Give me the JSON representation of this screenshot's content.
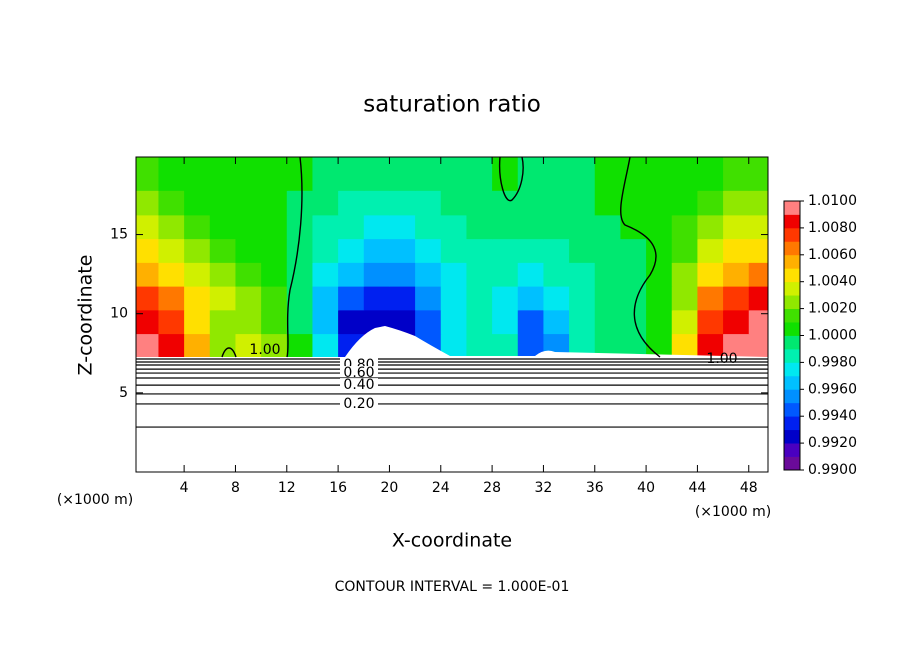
{
  "chart_data": {
    "type": "contour",
    "title": "saturation ratio",
    "x_label": "X-coordinate",
    "y_label": "Z-coordinate",
    "unit_label": "(×1000 m)",
    "footer": "CONTOUR INTERVAL = 1.000E-01",
    "xlim": [
      0.25,
      49.5
    ],
    "ylim": [
      0,
      19.9
    ],
    "xticks": [
      4,
      8,
      12,
      16,
      20,
      24,
      28,
      32,
      36,
      40,
      44,
      48
    ],
    "yticks": [
      5,
      10,
      15
    ],
    "field": {
      "x": [
        1,
        3,
        5,
        7,
        9,
        11,
        13,
        15,
        17,
        19,
        21,
        23,
        25,
        27,
        29,
        31,
        33,
        35,
        37,
        39,
        41,
        43,
        45,
        47,
        49
      ],
      "z": [
        8,
        9.5,
        11,
        12.5,
        14,
        15.5,
        17,
        18.6
      ],
      "values": [
        [
          1.009,
          1.008,
          1.005,
          1.002,
          1.003,
          1.002,
          1.0,
          0.997,
          0.993,
          0.991,
          0.992,
          0.994,
          0.997,
          0.998,
          0.998,
          0.994,
          0.995,
          0.998,
          0.999,
          0.999,
          1.0,
          1.004,
          1.008,
          1.009,
          1.009
        ],
        [
          1.008,
          1.007,
          1.004,
          1.002,
          1.002,
          1.001,
          0.999,
          0.996,
          0.992,
          0.992,
          0.992,
          0.994,
          0.997,
          0.998,
          0.997,
          0.994,
          0.996,
          0.998,
          0.999,
          0.999,
          1.0,
          1.003,
          1.007,
          1.008,
          1.009
        ],
        [
          1.007,
          1.006,
          1.004,
          1.003,
          1.002,
          1.001,
          0.999,
          0.996,
          0.994,
          0.993,
          0.993,
          0.995,
          0.997,
          0.998,
          0.997,
          0.996,
          0.997,
          0.998,
          0.999,
          0.999,
          1.0,
          1.002,
          1.006,
          1.007,
          1.008
        ],
        [
          1.005,
          1.004,
          1.003,
          1.002,
          1.001,
          1.0,
          0.999,
          0.997,
          0.996,
          0.995,
          0.995,
          0.996,
          0.997,
          0.998,
          0.998,
          0.997,
          0.998,
          0.998,
          0.999,
          0.999,
          1.0,
          1.002,
          1.004,
          1.005,
          1.006
        ],
        [
          1.004,
          1.003,
          1.002,
          1.001,
          1.0,
          1.0,
          0.999,
          0.998,
          0.997,
          0.996,
          0.996,
          0.997,
          0.998,
          0.998,
          0.998,
          0.998,
          0.998,
          0.999,
          0.999,
          0.999,
          1.0,
          1.001,
          1.003,
          1.004,
          1.004
        ],
        [
          1.003,
          1.002,
          1.001,
          1.0,
          1.0,
          1.0,
          0.999,
          0.998,
          0.998,
          0.997,
          0.997,
          0.998,
          0.998,
          0.999,
          0.999,
          0.999,
          0.999,
          0.999,
          0.999,
          1.0,
          1.0,
          1.001,
          1.002,
          1.003,
          1.003
        ],
        [
          1.002,
          1.001,
          1.0,
          1.0,
          1.0,
          1.0,
          0.999,
          0.999,
          0.998,
          0.998,
          0.998,
          0.998,
          0.999,
          0.999,
          0.999,
          0.999,
          0.999,
          0.999,
          1.0,
          1.0,
          1.0,
          1.0,
          1.001,
          1.002,
          1.002
        ],
        [
          1.001,
          1.0,
          1.0,
          1.0,
          1.0,
          1.0,
          1.0,
          0.999,
          0.999,
          0.999,
          0.999,
          0.999,
          0.999,
          0.999,
          1.0,
          0.999,
          0.999,
          0.999,
          1.0,
          1.0,
          1.0,
          1.0,
          1.0,
          1.001,
          1.001
        ]
      ]
    },
    "colorbar": {
      "lim": [
        0.99,
        1.01
      ],
      "colors": [
        "#6a0a9a",
        "#4a00c0",
        "#0000c8",
        "#0020f0",
        "#0058ff",
        "#0090ff",
        "#00c0ff",
        "#00e8f0",
        "#00f0b0",
        "#00e870",
        "#10e000",
        "#40e000",
        "#90e800",
        "#d0f000",
        "#ffe000",
        "#ffb000",
        "#ff7800",
        "#ff3800",
        "#f00000",
        "#ff8080"
      ],
      "ticks": [
        {
          "value": 1.01,
          "label": "1.0100"
        },
        {
          "value": 1.008,
          "label": "1.0080"
        },
        {
          "value": 1.006,
          "label": "1.0060"
        },
        {
          "value": 1.004,
          "label": "1.0040"
        },
        {
          "value": 1.002,
          "label": "1.0020"
        },
        {
          "value": 1.0,
          "label": "1.0000"
        },
        {
          "value": 0.998,
          "label": "0.9980"
        },
        {
          "value": 0.996,
          "label": "0.9960"
        },
        {
          "value": 0.994,
          "label": "0.9940"
        },
        {
          "value": 0.992,
          "label": "0.9920"
        },
        {
          "value": 0.99,
          "label": "0.9900"
        }
      ]
    },
    "contour_lines": [
      {
        "level": 1.0,
        "z": 7.14,
        "label": "1.00"
      },
      {
        "level": 0.9,
        "z": 6.95
      },
      {
        "level": 0.8,
        "z": 6.76,
        "label": "0.80"
      },
      {
        "level": 0.7,
        "z": 6.5
      },
      {
        "level": 0.6,
        "z": 6.25,
        "label": "0.60"
      },
      {
        "level": 0.5,
        "z": 5.94
      },
      {
        "level": 0.4,
        "z": 5.49,
        "label": "0.40"
      },
      {
        "level": 0.3,
        "z": 4.93
      },
      {
        "level": 0.2,
        "z": 4.3,
        "label": "0.20"
      },
      {
        "level": 0.1,
        "z": 2.84
      }
    ]
  }
}
